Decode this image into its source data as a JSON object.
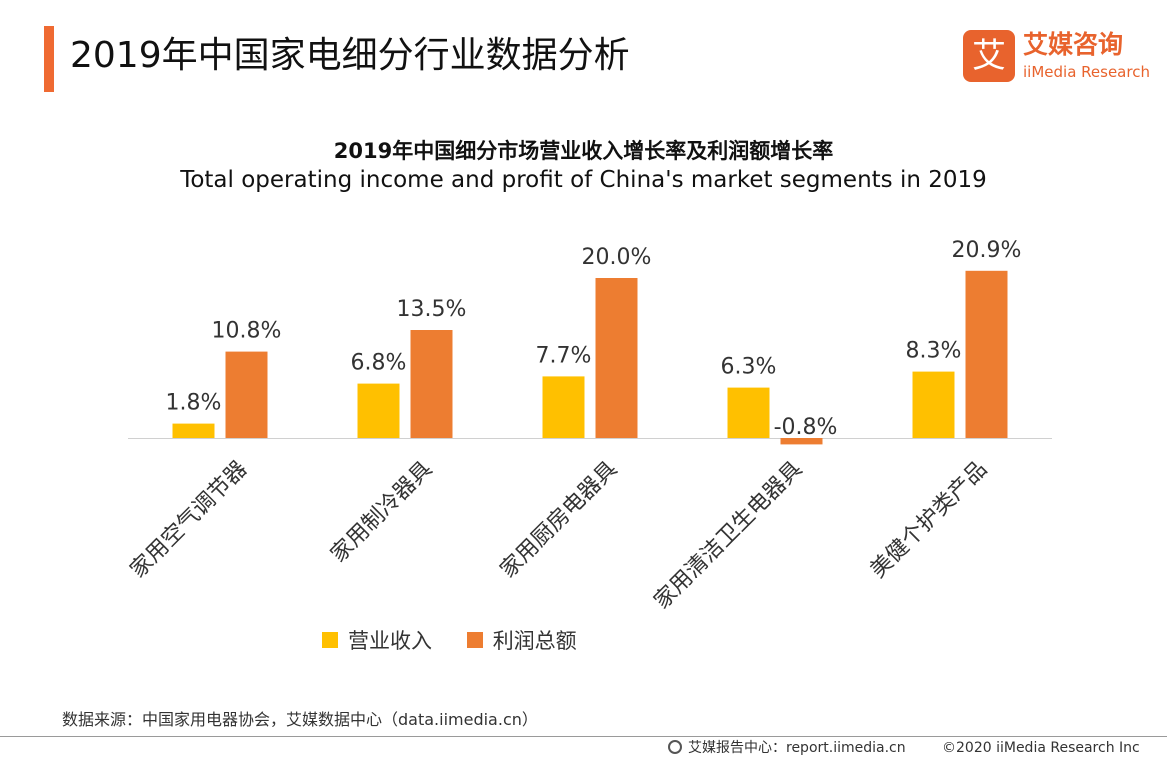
{
  "header": {
    "title": "2019年中国家电细分行业数据分析",
    "logo_mark": "艾",
    "logo_cn": "艾媒咨询",
    "logo_en": "iiMedia Research"
  },
  "colors": {
    "accent": "#ef6a32",
    "revenue": "#ffc000",
    "profit": "#ed7d31"
  },
  "chart_data": {
    "type": "bar",
    "title": "2019年中国细分市场营业收入增长率及利润额增长率",
    "subtitle": "Total operating income and profit of China's market segments in 2019",
    "categories": [
      "家用空气调节器",
      "家用制冷器具",
      "家用厨房电器具",
      "家用清洁卫生电器具",
      "美健个护类产品"
    ],
    "series": [
      {
        "name": "营业收入",
        "values": [
          1.8,
          6.8,
          7.7,
          6.3,
          8.3
        ],
        "labels": [
          "1.8%",
          "6.8%",
          "7.7%",
          "6.3%",
          "8.3%"
        ]
      },
      {
        "name": "利润总额",
        "values": [
          10.8,
          13.5,
          20.0,
          -0.8,
          20.9
        ],
        "labels": [
          "10.8%",
          "13.5%",
          "20.0%",
          "-0.8%",
          "20.9%"
        ]
      }
    ],
    "ylim": [
      -1,
      22
    ],
    "grid": false,
    "legend": "bottom",
    "xlabel": "",
    "ylabel": ""
  },
  "footer": {
    "source": "数据来源：中国家用电器协会，艾媒数据中心（data.iimedia.cn）",
    "report": "艾媒报告中心：report.iimedia.cn",
    "copyright": "©2020  iiMedia Research  Inc"
  }
}
